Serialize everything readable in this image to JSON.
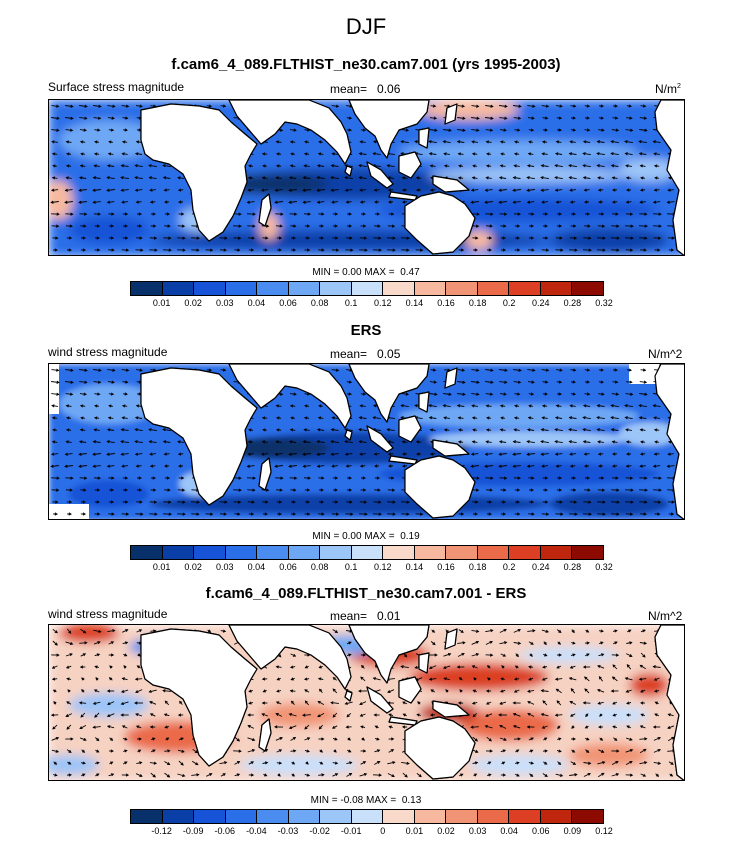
{
  "page_title": "DJF",
  "panels": [
    {
      "title": "f.cam6_4_089.FLTHIST_ne30.cam7.001 (yrs 1995-2003)",
      "left_label": "Surface stress magnitude",
      "mean_label": "mean=",
      "mean_value": "0.06",
      "units": "N/m",
      "units_sup": "2",
      "min_label": "MIN =",
      "min_value": "0.00",
      "max_label": "MAX =",
      "max_value": "0.47",
      "colorbar": {
        "colors": [
          "#08306b",
          "#0b3fa8",
          "#1753d6",
          "#2a6ee8",
          "#4a8cf0",
          "#6ea8f5",
          "#9cc5f8",
          "#c9e0fb",
          "#f9d9c9",
          "#f6b9a0",
          "#f19475",
          "#ea6a4a",
          "#dc3f23",
          "#c0250e",
          "#8c0a00"
        ],
        "tick_labels": [
          "0.01",
          "0.02",
          "0.03",
          "0.04",
          "0.06",
          "0.08",
          "0.1",
          "0.12",
          "0.14",
          "0.16",
          "0.18",
          "0.2",
          "0.24",
          "0.28",
          "0.32"
        ]
      }
    },
    {
      "title": "ERS",
      "left_label": "wind stress magnitude",
      "mean_label": "mean=",
      "mean_value": "0.05",
      "units": "N/m^2",
      "min_label": "MIN =",
      "min_value": "0.00",
      "max_label": "MAX =",
      "max_value": "0.19",
      "colorbar": {
        "colors": [
          "#08306b",
          "#0b3fa8",
          "#1753d6",
          "#2a6ee8",
          "#4a8cf0",
          "#6ea8f5",
          "#9cc5f8",
          "#c9e0fb",
          "#f9d9c9",
          "#f6b9a0",
          "#f19475",
          "#ea6a4a",
          "#dc3f23",
          "#c0250e",
          "#8c0a00"
        ],
        "tick_labels": [
          "0.01",
          "0.02",
          "0.03",
          "0.04",
          "0.06",
          "0.08",
          "0.1",
          "0.12",
          "0.14",
          "0.16",
          "0.18",
          "0.2",
          "0.24",
          "0.28",
          "0.32"
        ]
      }
    },
    {
      "title": "f.cam6_4_089.FLTHIST_ne30.cam7.001 - ERS",
      "left_label": "wind stress magnitude",
      "mean_label": "mean=",
      "mean_value": "0.01",
      "units": "N/m^2",
      "min_label": "MIN =",
      "min_value": "-0.08",
      "max_label": "MAX =",
      "max_value": "0.13",
      "colorbar": {
        "colors": [
          "#08306b",
          "#0b3fa8",
          "#1753d6",
          "#2a6ee8",
          "#4a8cf0",
          "#6ea8f5",
          "#9cc5f8",
          "#c9e0fb",
          "#f9d9c9",
          "#f6b9a0",
          "#f19475",
          "#ea6a4a",
          "#dc3f23",
          "#c0250e",
          "#8c0a00"
        ],
        "tick_labels": [
          "-0.12",
          "-0.09",
          "-0.06",
          "-0.04",
          "-0.03",
          "-0.02",
          "-0.01",
          "0",
          "0.01",
          "0.02",
          "0.03",
          "0.04",
          "0.06",
          "0.09",
          "0.12"
        ]
      }
    }
  ],
  "chart_data": [
    {
      "type": "heatmap",
      "title": "f.cam6_4_089.FLTHIST_ne30.cam7.001 (yrs 1995-2003)",
      "field": "Surface stress magnitude",
      "units": "N/m^2",
      "season": "DJF",
      "mean": 0.06,
      "min": 0.0,
      "max": 0.47,
      "contour_levels": [
        0.01,
        0.02,
        0.03,
        0.04,
        0.06,
        0.08,
        0.1,
        0.12,
        0.14,
        0.16,
        0.18,
        0.2,
        0.24,
        0.28,
        0.32
      ],
      "overlay": "wind stress vectors"
    },
    {
      "type": "heatmap",
      "title": "ERS",
      "field": "wind stress magnitude",
      "units": "N/m^2",
      "season": "DJF",
      "mean": 0.05,
      "min": 0.0,
      "max": 0.19,
      "contour_levels": [
        0.01,
        0.02,
        0.03,
        0.04,
        0.06,
        0.08,
        0.1,
        0.12,
        0.14,
        0.16,
        0.18,
        0.2,
        0.24,
        0.28,
        0.32
      ],
      "overlay": "wind stress vectors"
    },
    {
      "type": "heatmap",
      "title": "f.cam6_4_089.FLTHIST_ne30.cam7.001 - ERS",
      "field": "wind stress magnitude",
      "units": "N/m^2",
      "season": "DJF",
      "mean": 0.01,
      "min": -0.08,
      "max": 0.13,
      "contour_levels": [
        -0.12,
        -0.09,
        -0.06,
        -0.04,
        -0.03,
        -0.02,
        -0.01,
        0,
        0.01,
        0.02,
        0.03,
        0.04,
        0.06,
        0.09,
        0.12
      ],
      "overlay": "wind stress difference vectors"
    }
  ]
}
